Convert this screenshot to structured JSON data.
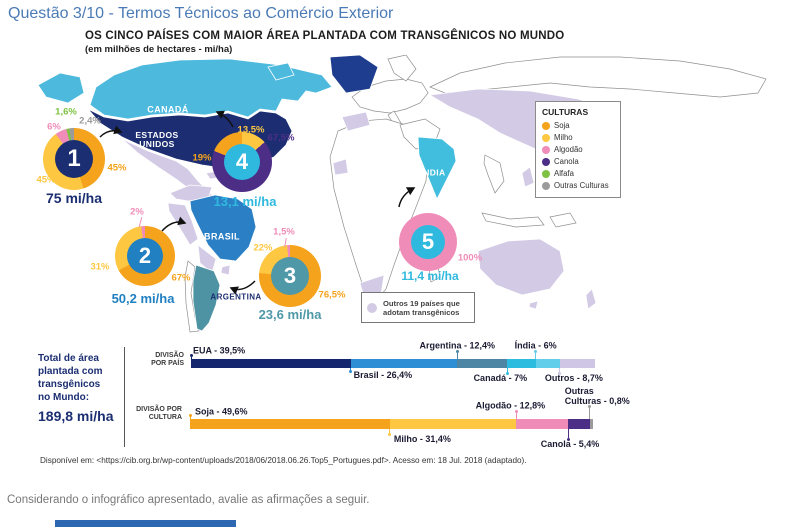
{
  "page": {
    "title": "Questão 3/10 - Termos Técnicos ao Comércio Exterior",
    "closing_text": "Considerando o infográfico apresentado, avalie as afirmações a seguir."
  },
  "infographic": {
    "title": "OS CINCO PAÍSES COM MAIOR ÁREA PLANTADA COM TRANSGÊNICOS NO MUNDO",
    "subtitle": "(em milhões de hectares - mi/ha)",
    "source": "Disponível em: <https://cib.org.br/wp-content/uploads/2018/06/2018.06.26.Top5_Portugues.pdf>. Acesso em: 18 Jul. 2018 (adaptado).",
    "legend": {
      "title": "CULTURAS",
      "items": [
        "Soja",
        "Milho",
        "Algodão",
        "Canola",
        "Alfafa",
        "Outras Culturas"
      ]
    },
    "map_note": "Outros 19 países que\nadotam transgênicos",
    "map_labels": [
      {
        "name": "CANADÁ"
      },
      {
        "name": "ESTADOS UNIDOS"
      },
      {
        "name": "BRASIL"
      },
      {
        "name": "ARGENTINA"
      },
      {
        "name": "ÍNDIA"
      }
    ],
    "total_block": {
      "label": "Total de área\nplantada com\ntransgênicos\nno Mundo:",
      "value": "189,8 mi/ha"
    },
    "division_country_label": "DIVISÃO\nPOR PAÍS",
    "division_culture_label": "DIVISÃO POR\nCULTURA"
  },
  "colors": {
    "title_blue": "#4B7BB5",
    "others_lavender": "#D3CBE5"
  },
  "culture_colors": {
    "Soja": "#F5A31C",
    "Milho": "#FDC741",
    "Algodão": "#F08CB8",
    "Canola": "#4C2E87",
    "Alfafa": "#7DC242",
    "Outras Culturas": "#9B9B9B"
  },
  "map_country_colors": {
    "Canadá": "#4CB9DD",
    "Estados Unidos": "#1C2E71",
    "Brasil": "#2B80C5",
    "Argentina": "#4E93A4",
    "Índia": "#41BDDD",
    "Outros": "#D3CBE5"
  },
  "chart_data": [
    {
      "type": "pie",
      "variant": "donut",
      "rank": 1,
      "country": "Estados Unidos",
      "total": "75 mi/ha",
      "unit": "milhões de hectares",
      "center_color": "#1B2E71",
      "segments": [
        {
          "culture": "Soja",
          "pct": 45,
          "label": "45%"
        },
        {
          "culture": "Milho",
          "pct": 45,
          "label": "45%"
        },
        {
          "culture": "Algodão",
          "pct": 6,
          "label": "6%"
        },
        {
          "culture": "Alfafa",
          "pct": 1.6,
          "label": "1,6%"
        },
        {
          "culture": "Outras Culturas",
          "pct": 2.4,
          "label": "2,4%"
        }
      ]
    },
    {
      "type": "pie",
      "variant": "donut",
      "rank": 2,
      "country": "Brasil",
      "total": "50,2 mi/ha",
      "unit": "milhões de hectares",
      "center_color": "#2180C2",
      "segments": [
        {
          "culture": "Soja",
          "pct": 67,
          "label": "67%"
        },
        {
          "culture": "Milho",
          "pct": 31,
          "label": "31%"
        },
        {
          "culture": "Algodão",
          "pct": 2,
          "label": "2%"
        }
      ]
    },
    {
      "type": "pie",
      "variant": "donut",
      "rank": 3,
      "country": "Argentina",
      "total": "23,6 mi/ha",
      "unit": "milhões de hectares",
      "center_color": "#4E98A8",
      "segments": [
        {
          "culture": "Soja",
          "pct": 76.5,
          "label": "76,5%"
        },
        {
          "culture": "Milho",
          "pct": 22,
          "label": "22%"
        },
        {
          "culture": "Algodão",
          "pct": 1.5,
          "label": "1,5%"
        }
      ]
    },
    {
      "type": "pie",
      "variant": "donut",
      "rank": 4,
      "country": "Canadá",
      "total": "13,1 mi/ha",
      "unit": "milhões de hectares",
      "center_color": "#2FB9DF",
      "segments": [
        {
          "culture": "Milho",
          "pct": 13.5,
          "label": "13,5%"
        },
        {
          "culture": "Canola",
          "pct": 67.5,
          "label": "67,5%"
        },
        {
          "culture": "Soja",
          "pct": 19,
          "label": "19%"
        }
      ]
    },
    {
      "type": "pie",
      "variant": "donut",
      "rank": 5,
      "country": "Índia",
      "total": "11,4 mi/ha",
      "unit": "milhões de hectares",
      "center_color": "#2FB9DF",
      "segments": [
        {
          "culture": "Algodão",
          "pct": 100,
          "label": "100%"
        }
      ]
    },
    {
      "type": "bar",
      "variant": "stacked_horizontal",
      "title": "DIVISÃO POR PAÍS",
      "xlim": [
        0,
        100
      ],
      "segments": [
        {
          "name": "EUA",
          "pct": 39.5,
          "label": "EUA - 39,5%",
          "color": "#14266E"
        },
        {
          "name": "Brasil",
          "pct": 26.4,
          "label": "Brasil - 26,4%",
          "color": "#2E8ED5"
        },
        {
          "name": "Argentina",
          "pct": 12.4,
          "label": "Argentina - 12,4%",
          "color": "#4C86A4"
        },
        {
          "name": "Canadá",
          "pct": 7,
          "label": "Canadá - 7%",
          "color": "#2CBCE0"
        },
        {
          "name": "Índia",
          "pct": 6,
          "label": "Índia - 6%",
          "color": "#63CEEA"
        },
        {
          "name": "Outros",
          "pct": 8.7,
          "label": "Outros - 8,7%",
          "color": "#CFC5E5"
        }
      ]
    },
    {
      "type": "bar",
      "variant": "stacked_horizontal",
      "title": "DIVISÃO POR CULTURA",
      "xlim": [
        0,
        100
      ],
      "segments": [
        {
          "name": "Soja",
          "pct": 49.6,
          "label": "Soja - 49,6%"
        },
        {
          "name": "Milho",
          "pct": 31.4,
          "label": "Milho - 31,4%"
        },
        {
          "name": "Algodão",
          "pct": 12.8,
          "label": "Algodão - 12,8%"
        },
        {
          "name": "Canola",
          "pct": 5.4,
          "label": "Canola - 5,4%"
        },
        {
          "name": "Outras Culturas",
          "pct": 0.8,
          "label": "Outras\nCulturas - 0,8%"
        }
      ]
    }
  ]
}
